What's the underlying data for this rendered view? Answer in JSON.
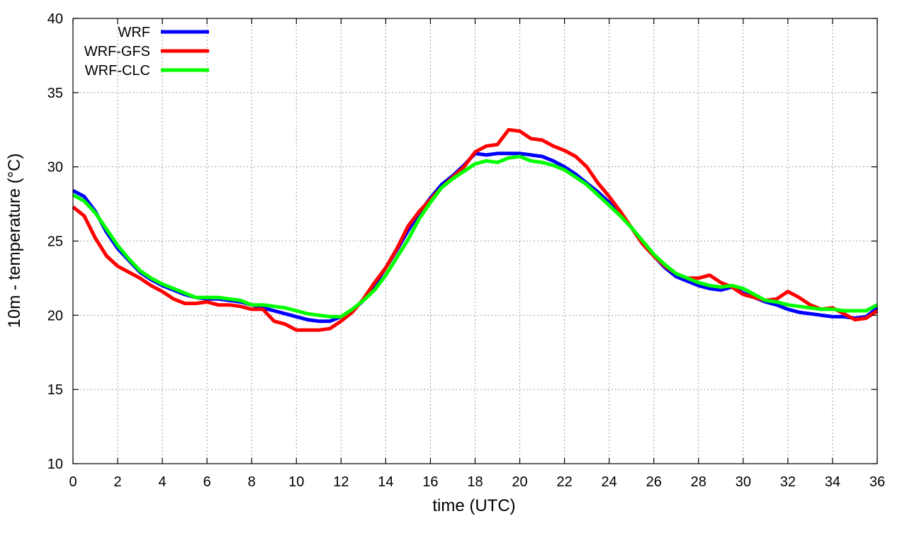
{
  "chart_data": {
    "type": "line",
    "xlabel": "time (UTC)",
    "ylabel": "10m - temperature (°C)",
    "xlim": [
      0,
      36
    ],
    "ylim": [
      10,
      40
    ],
    "x_ticks": [
      0,
      2,
      4,
      6,
      8,
      10,
      12,
      14,
      16,
      18,
      20,
      22,
      24,
      26,
      28,
      30,
      32,
      34,
      36
    ],
    "y_ticks": [
      10,
      15,
      20,
      25,
      30,
      35,
      40
    ],
    "grid": true,
    "legend_position": "top-left",
    "series": [
      {
        "name": "WRF",
        "color": "#0000ff",
        "x": [
          0,
          0.5,
          1,
          1.5,
          2,
          2.5,
          3,
          3.5,
          4,
          4.5,
          5,
          5.5,
          6,
          6.5,
          7,
          7.5,
          8,
          8.5,
          9,
          9.5,
          10,
          10.5,
          11,
          11.5,
          12,
          12.5,
          13,
          13.5,
          14,
          14.5,
          15,
          15.5,
          16,
          16.5,
          17,
          17.5,
          18,
          18.5,
          19,
          19.5,
          20,
          20.5,
          21,
          21.5,
          22,
          22.5,
          23,
          23.5,
          24,
          24.5,
          25,
          25.5,
          26,
          26.5,
          27,
          27.5,
          28,
          28.5,
          29,
          29.5,
          30,
          30.5,
          31,
          31.5,
          32,
          32.5,
          33,
          33.5,
          34,
          34.5,
          35,
          35.5,
          36
        ],
        "y": [
          28.4,
          28.0,
          27.0,
          25.6,
          24.5,
          23.7,
          22.9,
          22.4,
          22.0,
          21.7,
          21.4,
          21.2,
          21.1,
          21.1,
          21.0,
          20.9,
          20.7,
          20.5,
          20.3,
          20.1,
          19.9,
          19.7,
          19.6,
          19.6,
          19.9,
          20.3,
          21.0,
          22.0,
          23.2,
          24.4,
          25.7,
          26.9,
          27.9,
          28.8,
          29.4,
          30.1,
          30.9,
          30.8,
          30.9,
          30.9,
          30.9,
          30.8,
          30.7,
          30.4,
          30.0,
          29.5,
          28.9,
          28.3,
          27.6,
          26.8,
          25.9,
          24.8,
          24.0,
          23.2,
          22.6,
          22.3,
          22.0,
          21.8,
          21.7,
          21.9,
          21.5,
          21.2,
          20.9,
          20.7,
          20.4,
          20.2,
          20.1,
          20.0,
          19.9,
          19.9,
          19.8,
          19.9,
          20.5
        ]
      },
      {
        "name": "WRF-GFS",
        "color": "#ff0000",
        "x": [
          0,
          0.5,
          1,
          1.5,
          2,
          2.5,
          3,
          3.5,
          4,
          4.5,
          5,
          5.5,
          6,
          6.5,
          7,
          7.5,
          8,
          8.5,
          9,
          9.5,
          10,
          10.5,
          11,
          11.5,
          12,
          12.5,
          13,
          13.5,
          14,
          14.5,
          15,
          15.5,
          16,
          16.5,
          17,
          17.5,
          18,
          18.5,
          19,
          19.5,
          20,
          20.5,
          21,
          21.5,
          22,
          22.5,
          23,
          23.5,
          24,
          24.5,
          25,
          25.5,
          26,
          26.5,
          27,
          27.5,
          28,
          28.5,
          29,
          29.5,
          30,
          30.5,
          31,
          31.5,
          32,
          32.5,
          33,
          33.5,
          34,
          34.5,
          35,
          35.5,
          36
        ],
        "y": [
          27.3,
          26.7,
          25.2,
          24.0,
          23.3,
          22.9,
          22.5,
          22.0,
          21.6,
          21.1,
          20.8,
          20.8,
          20.9,
          20.7,
          20.7,
          20.6,
          20.4,
          20.4,
          19.6,
          19.4,
          19.0,
          19.0,
          19.0,
          19.1,
          19.6,
          20.2,
          21.1,
          22.2,
          23.2,
          24.5,
          26.0,
          27.0,
          27.8,
          28.6,
          29.3,
          30.0,
          31.0,
          31.4,
          31.5,
          32.5,
          32.4,
          31.9,
          31.8,
          31.4,
          31.1,
          30.7,
          30.0,
          28.9,
          28.0,
          27.0,
          25.9,
          24.8,
          24.0,
          23.3,
          22.8,
          22.5,
          22.5,
          22.7,
          22.2,
          21.9,
          21.4,
          21.2,
          21.0,
          21.1,
          21.6,
          21.2,
          20.7,
          20.4,
          20.5,
          20.1,
          19.7,
          19.8,
          20.3
        ]
      },
      {
        "name": "WRF-CLC",
        "color": "#00ff00",
        "x": [
          0,
          0.5,
          1,
          1.5,
          2,
          2.5,
          3,
          3.5,
          4,
          4.5,
          5,
          5.5,
          6,
          6.5,
          7,
          7.5,
          8,
          8.5,
          9,
          9.5,
          10,
          10.5,
          11,
          11.5,
          12,
          12.5,
          13,
          13.5,
          14,
          14.5,
          15,
          15.5,
          16,
          16.5,
          17,
          17.5,
          18,
          18.5,
          19,
          19.5,
          20,
          20.5,
          21,
          21.5,
          22,
          22.5,
          23,
          23.5,
          24,
          24.5,
          25,
          25.5,
          26,
          26.5,
          27,
          27.5,
          28,
          28.5,
          29,
          29.5,
          30,
          30.5,
          31,
          31.5,
          32,
          32.5,
          33,
          33.5,
          34,
          34.5,
          35,
          35.5,
          36
        ],
        "y": [
          28.1,
          27.7,
          26.9,
          25.8,
          24.7,
          23.8,
          23.0,
          22.5,
          22.1,
          21.8,
          21.5,
          21.2,
          21.2,
          21.2,
          21.1,
          21.0,
          20.7,
          20.7,
          20.6,
          20.5,
          20.3,
          20.1,
          20.0,
          19.9,
          19.9,
          20.4,
          21.0,
          21.7,
          22.7,
          23.9,
          25.1,
          26.5,
          27.6,
          28.6,
          29.2,
          29.7,
          30.2,
          30.4,
          30.3,
          30.6,
          30.7,
          30.4,
          30.3,
          30.1,
          29.8,
          29.3,
          28.8,
          28.1,
          27.4,
          26.7,
          25.9,
          25.0,
          24.1,
          23.4,
          22.8,
          22.5,
          22.2,
          22.0,
          21.9,
          22.0,
          21.8,
          21.4,
          21.0,
          20.9,
          20.7,
          20.6,
          20.5,
          20.4,
          20.4,
          20.3,
          20.3,
          20.3,
          20.7
        ]
      }
    ]
  }
}
